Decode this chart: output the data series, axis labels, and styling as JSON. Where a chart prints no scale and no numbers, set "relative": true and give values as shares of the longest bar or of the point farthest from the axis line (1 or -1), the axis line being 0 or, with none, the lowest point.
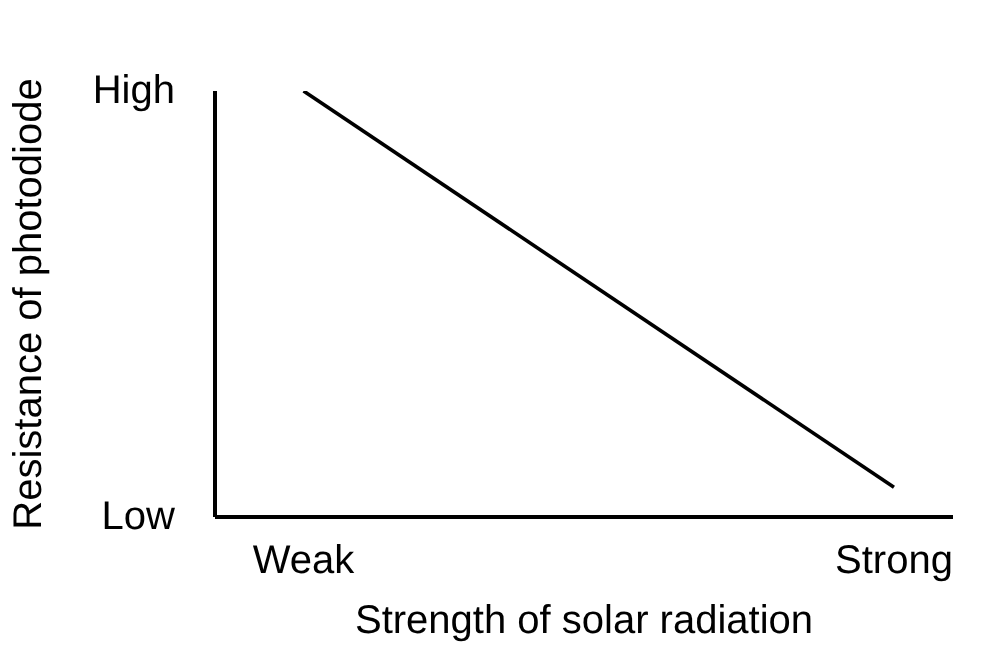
{
  "chart_data": {
    "type": "line",
    "xlabel": "Strength of solar radiation",
    "ylabel": "Resistance of photodiode",
    "categories": [
      "Weak",
      "Strong"
    ],
    "series": [
      {
        "color": "#000000",
        "values": [
          1,
          0.07
        ]
      }
    ],
    "relative": true,
    "annotations": [
      "High",
      "Low"
    ],
    "grid": false,
    "marker": "none",
    "line_style": "solid"
  }
}
